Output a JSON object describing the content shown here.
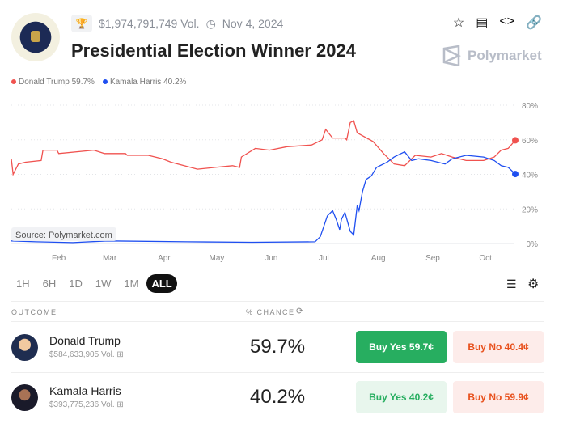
{
  "header": {
    "volume": "$1,974,791,749 Vol.",
    "date": "Nov 4, 2024",
    "title": "Presidential Election Winner 2024",
    "brand": "Polymarket"
  },
  "legend": [
    {
      "label": "Donald Trump 59.7%",
      "color": "#f0524f"
    },
    {
      "label": "Kamala Harris 40.2%",
      "color": "#1f4ff0"
    }
  ],
  "chart_data": {
    "type": "line",
    "title": "Presidential Election Winner 2024",
    "xlabel": "",
    "ylabel": "% chance",
    "x_unit": "day of year 2024",
    "xlim": [
      5,
      292
    ],
    "ylim": [
      0,
      80
    ],
    "yticks": [
      "0%",
      "20%",
      "40%",
      "60%",
      "80%"
    ],
    "ytick_values": [
      0,
      20,
      40,
      60,
      80
    ],
    "xticks": [
      "Feb",
      "Mar",
      "Apr",
      "May",
      "Jun",
      "Jul",
      "Aug",
      "Sep",
      "Oct"
    ],
    "xtick_values": [
      32,
      61,
      92,
      122,
      153,
      183,
      214,
      245,
      275
    ],
    "source": "Source: Polymarket.com",
    "series": [
      {
        "name": "Donald Trump",
        "color": "#f0524f",
        "points": [
          [
            5,
            49
          ],
          [
            6,
            40
          ],
          [
            9,
            46
          ],
          [
            13,
            47
          ],
          [
            22,
            48
          ],
          [
            23,
            54
          ],
          [
            31,
            54
          ],
          [
            32,
            52
          ],
          [
            52,
            54
          ],
          [
            58,
            52
          ],
          [
            70,
            52
          ],
          [
            71,
            51
          ],
          [
            83,
            51
          ],
          [
            91,
            49
          ],
          [
            96,
            47
          ],
          [
            111,
            43
          ],
          [
            121,
            44
          ],
          [
            131,
            45
          ],
          [
            135,
            44
          ],
          [
            136,
            50
          ],
          [
            144,
            55
          ],
          [
            152,
            54
          ],
          [
            162,
            56
          ],
          [
            176,
            57
          ],
          [
            182,
            60
          ],
          [
            184,
            66
          ],
          [
            188,
            61
          ],
          [
            195,
            61
          ],
          [
            196,
            60
          ],
          [
            198,
            70
          ],
          [
            200,
            71
          ],
          [
            202,
            64
          ],
          [
            211,
            59
          ],
          [
            217,
            52
          ],
          [
            223,
            46
          ],
          [
            229,
            45
          ],
          [
            235,
            51
          ],
          [
            244,
            50
          ],
          [
            250,
            52
          ],
          [
            256,
            50
          ],
          [
            264,
            48
          ],
          [
            274,
            48
          ],
          [
            280,
            50
          ],
          [
            284,
            54
          ],
          [
            288,
            55
          ],
          [
            292,
            59.7
          ]
        ]
      },
      {
        "name": "Kamala Harris",
        "color": "#1f4ff0",
        "points": [
          [
            5,
            1.5
          ],
          [
            19,
            1
          ],
          [
            40,
            0.5
          ],
          [
            60,
            1.5
          ],
          [
            105,
            1
          ],
          [
            142,
            0.7
          ],
          [
            178,
            1
          ],
          [
            181,
            4
          ],
          [
            185,
            16
          ],
          [
            188,
            19
          ],
          [
            190,
            14
          ],
          [
            192,
            8
          ],
          [
            193,
            14
          ],
          [
            195,
            18
          ],
          [
            198,
            7
          ],
          [
            200,
            5
          ],
          [
            202,
            22
          ],
          [
            203,
            19
          ],
          [
            205,
            30
          ],
          [
            207,
            37
          ],
          [
            210,
            39
          ],
          [
            213,
            44
          ],
          [
            219,
            47
          ],
          [
            223,
            50
          ],
          [
            229,
            53
          ],
          [
            233,
            48
          ],
          [
            237,
            49
          ],
          [
            244,
            48
          ],
          [
            252,
            46
          ],
          [
            256,
            49
          ],
          [
            264,
            51
          ],
          [
            274,
            50
          ],
          [
            280,
            48
          ],
          [
            284,
            45
          ],
          [
            288,
            44
          ],
          [
            292,
            40.2
          ]
        ]
      }
    ]
  },
  "timeframes": [
    "1H",
    "6H",
    "1D",
    "1W",
    "1M",
    "ALL"
  ],
  "table": {
    "col_outcome": "OUTCOME",
    "col_chance": "% CHANCE",
    "rows": [
      {
        "name": "Donald Trump",
        "volume": "$584,633,905 Vol.",
        "chance": "59.7%",
        "buy_yes": "Buy Yes 59.7¢",
        "buy_no": "Buy No 40.4¢"
      },
      {
        "name": "Kamala Harris",
        "volume": "$393,775,236 Vol.",
        "chance": "40.2%",
        "buy_yes": "Buy Yes 40.2¢",
        "buy_no": "Buy No 59.9¢"
      }
    ]
  }
}
